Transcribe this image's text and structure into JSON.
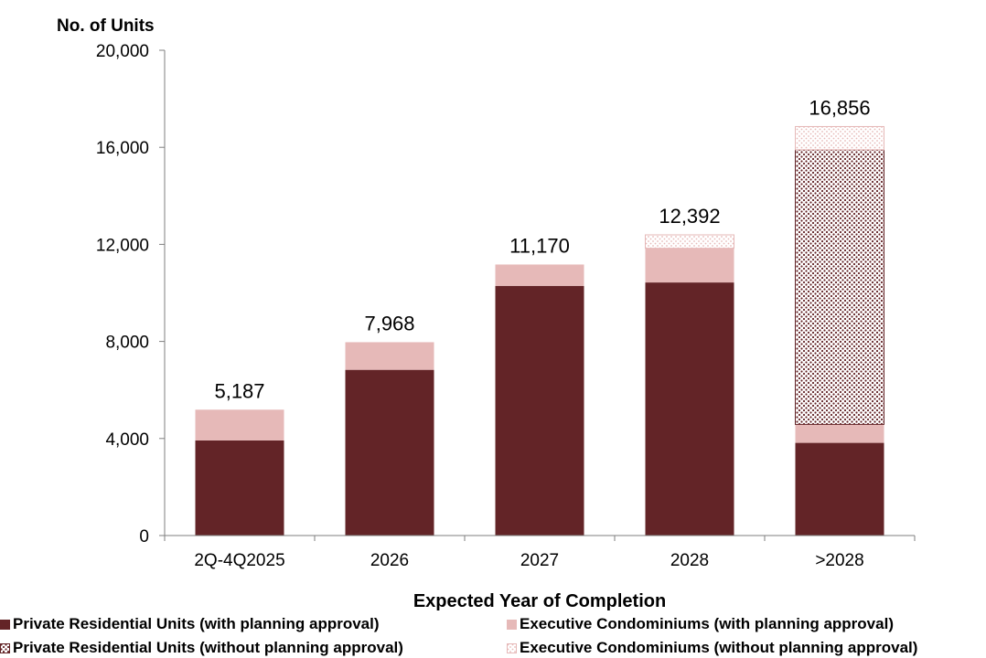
{
  "colors": {
    "private_with": "#632427",
    "ec_with": "#e6b9b8",
    "private_without_dots": "#632427",
    "ec_without_dots": "#e6b9b8",
    "axis": "#7f7f7f"
  },
  "chart_data": {
    "type": "bar",
    "stacked": true,
    "ylabel": "No. of Units",
    "xlabel": "Expected Year of Completion",
    "categories": [
      "2Q-4Q2025",
      "2026",
      "2027",
      "2028",
      ">2028"
    ],
    "ylim": [
      0,
      20000
    ],
    "yticks": [
      0,
      4000,
      8000,
      12000,
      16000,
      20000
    ],
    "ytick_labels": [
      "0",
      "4,000",
      "8,000",
      "12,000",
      "16,000",
      "20,000"
    ],
    "grid": false,
    "legend_position": "bottom",
    "series": [
      {
        "name": "Private Residential Units (with planning approval)",
        "pattern": "solid",
        "values": [
          3920,
          6830,
          10290,
          10430,
          3820
        ]
      },
      {
        "name": "Executive Condominiums (with planning approval)",
        "pattern": "solid",
        "values": [
          1267,
          1138,
          880,
          1410,
          760
        ]
      },
      {
        "name": "Private Residential Units (without planning approval)",
        "pattern": "dots",
        "values": [
          0,
          0,
          0,
          0,
          11320
        ]
      },
      {
        "name": "Executive Condominiums (without planning approval)",
        "pattern": "dots",
        "values": [
          0,
          0,
          0,
          552,
          956
        ]
      }
    ],
    "totals": [
      5187,
      7968,
      11170,
      12392,
      16856
    ],
    "total_labels": [
      "5,187",
      "7,968",
      "11,170",
      "12,392",
      "16,856"
    ]
  }
}
